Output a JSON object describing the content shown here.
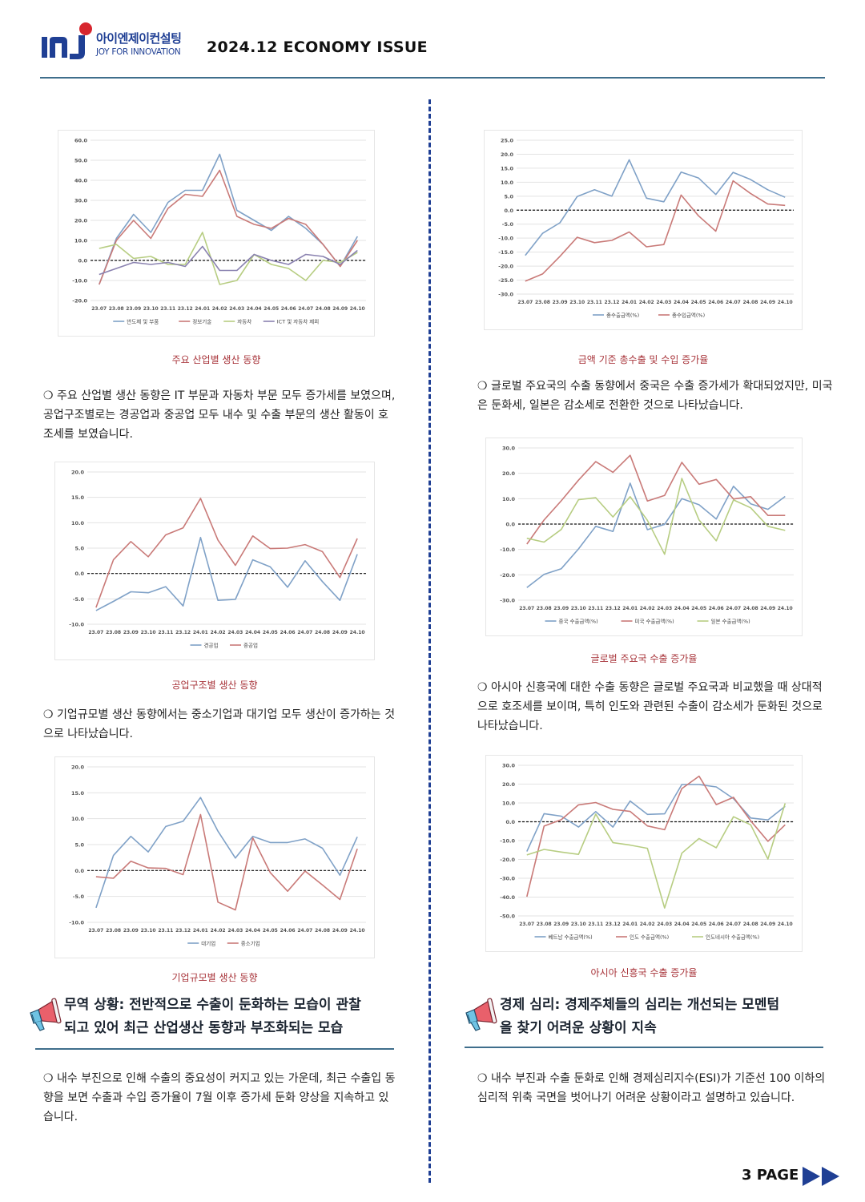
{
  "header": {
    "company_name": "아이엔제이컨설팅",
    "tagline": "JOY FOR INNOVATION",
    "logo_letters": "InJ",
    "issue": "2024.12 ECONOMY ISSUE"
  },
  "colors": {
    "blue": "#7fa1c7",
    "red": "#c97a78",
    "green": "#b7cd82",
    "purple": "#8a82b0",
    "brand": "#1f3f94",
    "caption": "#a8343a",
    "rule": "#3f6e8c"
  },
  "left": {
    "chart1_caption": "주요 산업별 생산 동향",
    "para1": "❍ 주요 산업별 생산 동향은 IT 부문과 자동차 부문 모두 증가세를 보였으며, 공업구조별로는 경공업과 중공업 모두 내수 및 수출 부문의 생산 활동이 호조세를 보였습니다.",
    "chart2_caption": "공업구조별 생산 동향",
    "para2": "❍ 기업규모별 생산 동향에서는 중소기업과 대기업 모두 생산이 증가하는 것으로 나타났습니다.",
    "chart3_caption": "기업규모별 생산 동향",
    "section_title_line1": "무역 상황: 전반적으로 수출이 둔화하는 모습이 관찰",
    "section_title_line2": "되고 있어 최근 산업생산 동향과 부조화되는 모습",
    "para3": "❍ 내수 부진으로 인해 수출의 중요성이 커지고 있는 가운데, 최근 수출입 동향을 보면 수출과 수입 증가율이 7월 이후 증가세 둔화 양상을 지속하고 있습니다."
  },
  "right": {
    "chart4_caption": "금액 기준 총수출 및 수입 증가율",
    "para1": "❍ 글로벌 주요국의 수출 동향에서 중국은 수출 증가세가 확대되었지만, 미국은 둔화세, 일본은 감소세로 전환한 것으로 나타났습니다.",
    "chart5_caption": "글로벌 주요국 수출 증가율",
    "para2": "❍ 아시아 신흥국에 대한 수출 동향은 글로벌 주요국과 비교했을 때 상대적으로 호조세를 보이며, 특히 인도와 관련된 수출이 감소세가 둔화된 것으로 나타났습니다.",
    "chart6_caption": "아시아 신흥국 수출 증가율",
    "section_title_line1": "경제 심리: 경제주체들의 심리는 개선되는 모멘텀",
    "section_title_line2": "을 찾기 어려운 상황이 지속",
    "para3": "❍ 내수 부진과 수출 둔화로 인해 경제심리지수(ESI)가 기준선 100 이하의 심리적 위축 국면을 벗어나기 어려운 상황이라고 설명하고 있습니다."
  },
  "page": {
    "label": "3 PAGE",
    "icon": "double-arrow-icon"
  },
  "chart_data": [
    {
      "id": "chart1",
      "type": "line",
      "categories": [
        "23.07",
        "23.08",
        "23.09",
        "23.10",
        "23.11",
        "23.12",
        "24.01",
        "24.02",
        "24.03",
        "24.04",
        "24.05",
        "24.06",
        "24.07",
        "24.08",
        "24.09",
        "24.10"
      ],
      "ylim": [
        -20,
        60
      ],
      "yticks": [
        -20,
        -10,
        0,
        10,
        20,
        30,
        40,
        50,
        60
      ],
      "ytick_labels": [
        "-20.0",
        "-10.0",
        "0.0",
        "10.0",
        "20.0",
        "30.0",
        "40.0",
        "50.0",
        "60.0"
      ],
      "legend": "bottom",
      "series": [
        {
          "name": "반도체 및 부품",
          "color": "#7fa1c7",
          "values": [
            -12,
            11,
            23,
            14,
            29,
            35,
            35,
            53,
            25,
            20,
            15,
            22,
            16,
            8,
            -3,
            12
          ]
        },
        {
          "name": "정보기술",
          "color": "#c97a78",
          "values": [
            -12,
            10,
            20,
            11,
            26,
            33,
            32,
            45,
            22,
            18,
            16,
            21,
            18,
            8,
            -3,
            10
          ]
        },
        {
          "name": "자동차",
          "color": "#b7cd82",
          "values": [
            6,
            8,
            1,
            2,
            -2,
            -2,
            14,
            -12,
            -10,
            3,
            -2,
            -4,
            -10,
            0,
            -1,
            4
          ]
        },
        {
          "name": "ICT 및 자동차 제외",
          "color": "#8a82b0",
          "values": [
            -7,
            -4,
            -1,
            -2,
            -1,
            -3,
            7,
            -5,
            -5,
            3,
            0,
            -2,
            3,
            2,
            -2,
            5
          ]
        }
      ]
    },
    {
      "id": "chart2",
      "type": "line",
      "categories": [
        "23.07",
        "23.08",
        "23.09",
        "23.10",
        "23.11",
        "23.12",
        "24.01",
        "24.02",
        "24.03",
        "24.04",
        "24.05",
        "24.06",
        "24.07",
        "24.08",
        "24.09",
        "24.10"
      ],
      "ylim": [
        -10,
        20
      ],
      "yticks": [
        -10,
        -5,
        0,
        5,
        10,
        15,
        20
      ],
      "ytick_labels": [
        "-10.0",
        "-5.0",
        "0.0",
        "5.0",
        "10.0",
        "15.0",
        "20.0"
      ],
      "legend": "bottom",
      "series": [
        {
          "name": "경공업",
          "color": "#7fa1c7",
          "values": [
            -7.3,
            -5.5,
            -3.6,
            -3.8,
            -2.6,
            -6.4,
            7.1,
            -5.3,
            -5.1,
            2.7,
            1.3,
            -2.7,
            2.5,
            -1.6,
            -5.3,
            3.8
          ]
        },
        {
          "name": "중공업",
          "color": "#c97a78",
          "values": [
            -6.7,
            2.7,
            6.3,
            3.3,
            7.6,
            9.0,
            14.8,
            6.6,
            1.6,
            7.4,
            4.9,
            5.0,
            5.7,
            4.3,
            -0.8,
            6.9
          ]
        }
      ]
    },
    {
      "id": "chart3",
      "type": "line",
      "categories": [
        "23.07",
        "23.08",
        "23.09",
        "23.10",
        "23.11",
        "23.12",
        "24.01",
        "24.02",
        "24.03",
        "24.04",
        "24.05",
        "24.06",
        "24.07",
        "24.08",
        "24.09",
        "24.10"
      ],
      "ylim": [
        -10,
        20
      ],
      "yticks": [
        -10,
        -5,
        0,
        5,
        10,
        15,
        20
      ],
      "ytick_labels": [
        "-10.0",
        "-5.0",
        "0.0",
        "5.0",
        "10.0",
        "15.0",
        "20.0"
      ],
      "legend": "bottom",
      "series": [
        {
          "name": "대기업",
          "color": "#7fa1c7",
          "values": [
            -7.2,
            2.9,
            6.6,
            3.6,
            8.5,
            9.5,
            14.1,
            7.6,
            2.4,
            6.6,
            5.4,
            5.4,
            6.1,
            4.3,
            -0.9,
            6.5
          ]
        },
        {
          "name": "중소기업",
          "color": "#c97a78",
          "values": [
            -1.2,
            -1.5,
            1.8,
            0.5,
            0.4,
            -0.8,
            10.8,
            -6.1,
            -7.6,
            6.3,
            -0.4,
            -4.0,
            -0.1,
            -2.8,
            -5.6,
            4.2
          ]
        }
      ]
    },
    {
      "id": "chart4",
      "type": "line",
      "categories": [
        "23.07",
        "23.08",
        "23.09",
        "23.10",
        "23.11",
        "23.12",
        "24.01",
        "24.02",
        "24.03",
        "24.04",
        "24.05",
        "24.06",
        "24.07",
        "24.08",
        "24.09",
        "24.10"
      ],
      "ylim": [
        -30,
        25
      ],
      "yticks": [
        -30,
        -25,
        -20,
        -15,
        -10,
        -5,
        0,
        5,
        10,
        15,
        20,
        25
      ],
      "ytick_labels": [
        "-30.0",
        "-25.0",
        "-20.0",
        "-15.0",
        "-10.0",
        "-5.0",
        "0.0",
        "5.0",
        "10.0",
        "15.0",
        "20.0",
        "25.0"
      ],
      "legend": "bottom",
      "series": [
        {
          "name": "총수출금액(%)",
          "color": "#7fa1c7",
          "values": [
            -16.2,
            -8.3,
            -4.5,
            4.9,
            7.3,
            5.0,
            18.0,
            4.3,
            3.0,
            13.6,
            11.5,
            5.6,
            13.5,
            11.0,
            7.3,
            4.6
          ]
        },
        {
          "name": "총수입금액(%)",
          "color": "#c97a78",
          "values": [
            -25.4,
            -22.8,
            -16.5,
            -9.7,
            -11.6,
            -10.8,
            -7.8,
            -13.1,
            -12.3,
            5.4,
            -2.0,
            -7.5,
            10.5,
            6.0,
            2.2,
            1.7
          ]
        }
      ]
    },
    {
      "id": "chart5",
      "type": "line",
      "categories": [
        "23.07",
        "23.08",
        "23.09",
        "23.10",
        "23.11",
        "23.12",
        "24.01",
        "24.02",
        "24.03",
        "24.04",
        "24.05",
        "24.06",
        "24.07",
        "24.08",
        "24.09",
        "24.10"
      ],
      "ylim": [
        -30,
        30
      ],
      "yticks": [
        -30,
        -20,
        -10,
        0,
        10,
        20,
        30
      ],
      "ytick_labels": [
        "-30.0",
        "-20.0",
        "-10.0",
        "0.0",
        "10.0",
        "20.0",
        "30.0"
      ],
      "legend": "bottom",
      "series": [
        {
          "name": "중국 수출금액(%)",
          "color": "#7fa1c7",
          "values": [
            -25,
            -19.8,
            -17.6,
            -9.8,
            -0.9,
            -2.9,
            16.1,
            -2.2,
            -0.1,
            10.0,
            7.6,
            2.0,
            14.9,
            8.0,
            5.8,
            10.9
          ]
        },
        {
          "name": "미국 수출금액(%)",
          "color": "#c97a78",
          "values": [
            -7.9,
            1.6,
            9.2,
            17.3,
            24.6,
            20.4,
            27.1,
            9.1,
            11.3,
            24.3,
            15.7,
            17.6,
            9.9,
            10.8,
            3.4,
            3.4
          ]
        },
        {
          "name": "일본 수출금액(%)",
          "color": "#b7cd82",
          "values": [
            -5.6,
            -7.1,
            -2.1,
            9.6,
            10.4,
            2.8,
            10.8,
            1.5,
            -11.9,
            18.0,
            1.6,
            -6.6,
            9.5,
            6.4,
            -0.9,
            -2.5
          ]
        }
      ]
    },
    {
      "id": "chart6",
      "type": "line",
      "categories": [
        "23.07",
        "23.08",
        "23.09",
        "23.10",
        "23.11",
        "23.12",
        "24.01",
        "24.02",
        "24.03",
        "24.04",
        "24.05",
        "24.06",
        "24.07",
        "24.08",
        "24.09",
        "24.10"
      ],
      "ylim": [
        -50,
        30
      ],
      "yticks": [
        -50,
        -40,
        -30,
        -20,
        -10,
        0,
        10,
        20,
        30
      ],
      "ytick_labels": [
        "-50.0",
        "-40.0",
        "-30.0",
        "-20.0",
        "-10.0",
        "0.0",
        "10.0",
        "20.0",
        "30.0"
      ],
      "legend": "bottom",
      "series": [
        {
          "name": "베트남 수출금액(%)",
          "color": "#7fa1c7",
          "values": [
            -15.8,
            4.3,
            3.0,
            -2.8,
            5.4,
            -2.8,
            11.0,
            3.9,
            4.2,
            19.8,
            19.8,
            18.5,
            12.3,
            2.0,
            1.0,
            8.2
          ]
        },
        {
          "name": "인도 수출금액(%)",
          "color": "#c97a78",
          "values": [
            -39.8,
            -2.3,
            1.1,
            9.0,
            10.2,
            6.6,
            5.5,
            -2.2,
            -4.2,
            17.6,
            24.2,
            9.1,
            13.0,
            0.5,
            -10.4,
            -1.6
          ]
        },
        {
          "name": "인도네시아 수출금액(%)",
          "color": "#b7cd82",
          "values": [
            -17.6,
            -14.7,
            -16.1,
            -17.3,
            4.1,
            -11.1,
            -12.4,
            -14.1,
            -45.8,
            -16.7,
            -8.9,
            -13.8,
            2.7,
            -1.6,
            -19.8,
            9.8
          ]
        }
      ]
    }
  ]
}
